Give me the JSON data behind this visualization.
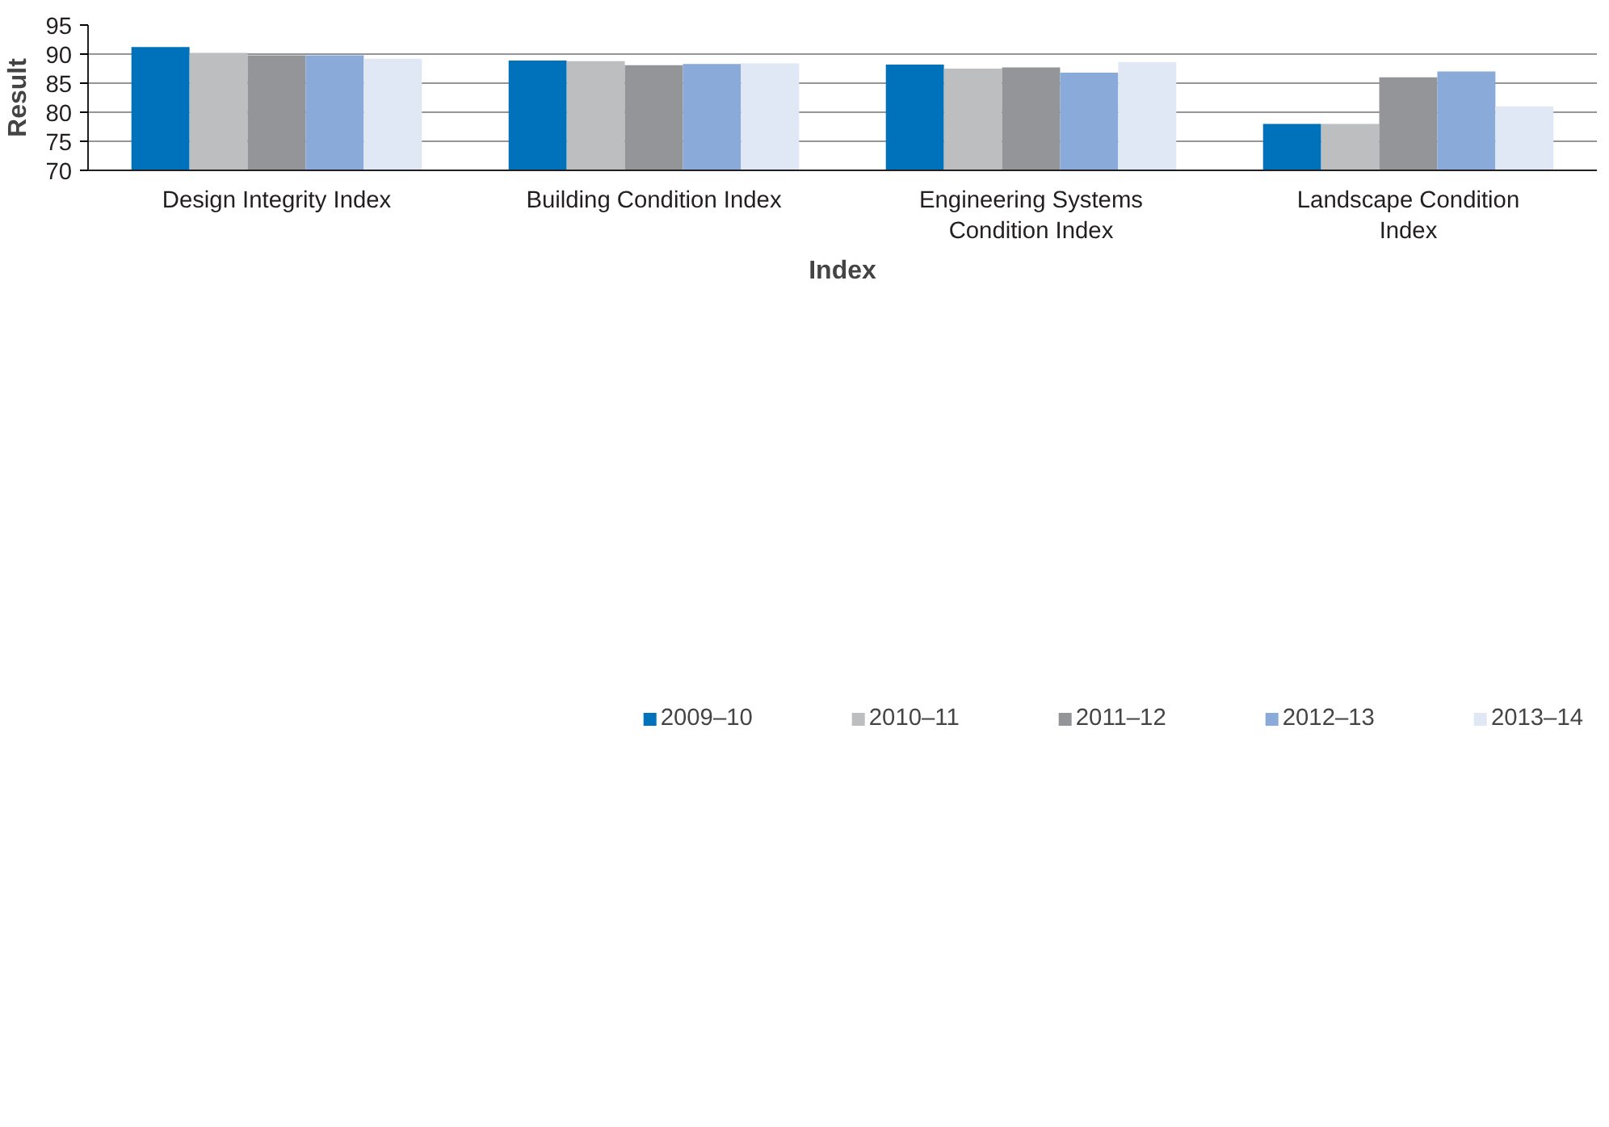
{
  "chart_data": {
    "type": "bar",
    "xlabel": "Index",
    "ylabel": "Result",
    "categories": [
      "Design Integrity Index",
      "Building Condition Index",
      "Engineering Systems Condition Index",
      "Landscape Condition Index"
    ],
    "series": [
      {
        "name": "2009–10",
        "color": "#0072bc",
        "values": [
          91.2,
          88.9,
          88.2,
          78
        ]
      },
      {
        "name": "2010–11",
        "color": "#bcbec0",
        "values": [
          90.2,
          88.8,
          87.5,
          78
        ]
      },
      {
        "name": "2011–12",
        "color": "#939598",
        "values": [
          89.8,
          88.1,
          87.7,
          86
        ]
      },
      {
        "name": "2012–13",
        "color": "#8aabd9",
        "values": [
          89.8,
          88.3,
          86.8,
          87
        ]
      },
      {
        "name": "2013–14",
        "color": "#e1e8f5",
        "values": [
          89.2,
          88.4,
          88.6,
          81
        ]
      }
    ],
    "ylim": [
      70,
      95
    ],
    "yticks": [
      70,
      75,
      80,
      85,
      90,
      95
    ],
    "grid": "y",
    "legend": "bottom"
  }
}
